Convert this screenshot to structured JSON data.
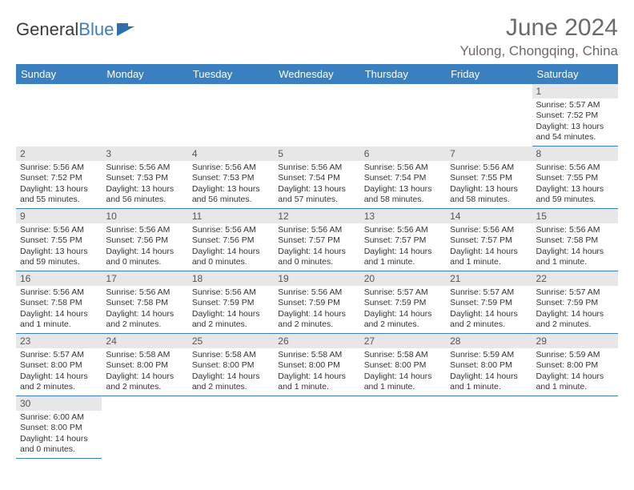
{
  "brand": {
    "part1": "General",
    "part2": "Blue"
  },
  "title": "June 2024",
  "location": "Yulong, Chongqing, China",
  "colors": {
    "header_bg": "#3a7fbf",
    "header_text": "#ffffff",
    "daynum_bg": "#e7e7e7",
    "cell_border": "#3a7fbf",
    "title_color": "#6a6a6a",
    "body_text": "#333333"
  },
  "day_headers": [
    "Sunday",
    "Monday",
    "Tuesday",
    "Wednesday",
    "Thursday",
    "Friday",
    "Saturday"
  ],
  "weeks": [
    [
      null,
      null,
      null,
      null,
      null,
      null,
      {
        "n": "1",
        "sunrise": "5:57 AM",
        "sunset": "7:52 PM",
        "daylight": "13 hours and 54 minutes."
      }
    ],
    [
      {
        "n": "2",
        "sunrise": "5:56 AM",
        "sunset": "7:52 PM",
        "daylight": "13 hours and 55 minutes."
      },
      {
        "n": "3",
        "sunrise": "5:56 AM",
        "sunset": "7:53 PM",
        "daylight": "13 hours and 56 minutes."
      },
      {
        "n": "4",
        "sunrise": "5:56 AM",
        "sunset": "7:53 PM",
        "daylight": "13 hours and 56 minutes."
      },
      {
        "n": "5",
        "sunrise": "5:56 AM",
        "sunset": "7:54 PM",
        "daylight": "13 hours and 57 minutes."
      },
      {
        "n": "6",
        "sunrise": "5:56 AM",
        "sunset": "7:54 PM",
        "daylight": "13 hours and 58 minutes."
      },
      {
        "n": "7",
        "sunrise": "5:56 AM",
        "sunset": "7:55 PM",
        "daylight": "13 hours and 58 minutes."
      },
      {
        "n": "8",
        "sunrise": "5:56 AM",
        "sunset": "7:55 PM",
        "daylight": "13 hours and 59 minutes."
      }
    ],
    [
      {
        "n": "9",
        "sunrise": "5:56 AM",
        "sunset": "7:55 PM",
        "daylight": "13 hours and 59 minutes."
      },
      {
        "n": "10",
        "sunrise": "5:56 AM",
        "sunset": "7:56 PM",
        "daylight": "14 hours and 0 minutes."
      },
      {
        "n": "11",
        "sunrise": "5:56 AM",
        "sunset": "7:56 PM",
        "daylight": "14 hours and 0 minutes."
      },
      {
        "n": "12",
        "sunrise": "5:56 AM",
        "sunset": "7:57 PM",
        "daylight": "14 hours and 0 minutes."
      },
      {
        "n": "13",
        "sunrise": "5:56 AM",
        "sunset": "7:57 PM",
        "daylight": "14 hours and 1 minute."
      },
      {
        "n": "14",
        "sunrise": "5:56 AM",
        "sunset": "7:57 PM",
        "daylight": "14 hours and 1 minute."
      },
      {
        "n": "15",
        "sunrise": "5:56 AM",
        "sunset": "7:58 PM",
        "daylight": "14 hours and 1 minute."
      }
    ],
    [
      {
        "n": "16",
        "sunrise": "5:56 AM",
        "sunset": "7:58 PM",
        "daylight": "14 hours and 1 minute."
      },
      {
        "n": "17",
        "sunrise": "5:56 AM",
        "sunset": "7:58 PM",
        "daylight": "14 hours and 2 minutes."
      },
      {
        "n": "18",
        "sunrise": "5:56 AM",
        "sunset": "7:59 PM",
        "daylight": "14 hours and 2 minutes."
      },
      {
        "n": "19",
        "sunrise": "5:56 AM",
        "sunset": "7:59 PM",
        "daylight": "14 hours and 2 minutes."
      },
      {
        "n": "20",
        "sunrise": "5:57 AM",
        "sunset": "7:59 PM",
        "daylight": "14 hours and 2 minutes."
      },
      {
        "n": "21",
        "sunrise": "5:57 AM",
        "sunset": "7:59 PM",
        "daylight": "14 hours and 2 minutes."
      },
      {
        "n": "22",
        "sunrise": "5:57 AM",
        "sunset": "7:59 PM",
        "daylight": "14 hours and 2 minutes."
      }
    ],
    [
      {
        "n": "23",
        "sunrise": "5:57 AM",
        "sunset": "8:00 PM",
        "daylight": "14 hours and 2 minutes."
      },
      {
        "n": "24",
        "sunrise": "5:58 AM",
        "sunset": "8:00 PM",
        "daylight": "14 hours and 2 minutes."
      },
      {
        "n": "25",
        "sunrise": "5:58 AM",
        "sunset": "8:00 PM",
        "daylight": "14 hours and 2 minutes."
      },
      {
        "n": "26",
        "sunrise": "5:58 AM",
        "sunset": "8:00 PM",
        "daylight": "14 hours and 1 minute."
      },
      {
        "n": "27",
        "sunrise": "5:58 AM",
        "sunset": "8:00 PM",
        "daylight": "14 hours and 1 minute."
      },
      {
        "n": "28",
        "sunrise": "5:59 AM",
        "sunset": "8:00 PM",
        "daylight": "14 hours and 1 minute."
      },
      {
        "n": "29",
        "sunrise": "5:59 AM",
        "sunset": "8:00 PM",
        "daylight": "14 hours and 1 minute."
      }
    ],
    [
      {
        "n": "30",
        "sunrise": "6:00 AM",
        "sunset": "8:00 PM",
        "daylight": "14 hours and 0 minutes."
      },
      null,
      null,
      null,
      null,
      null,
      null
    ]
  ],
  "labels": {
    "sunrise": "Sunrise: ",
    "sunset": "Sunset: ",
    "daylight": "Daylight: "
  }
}
